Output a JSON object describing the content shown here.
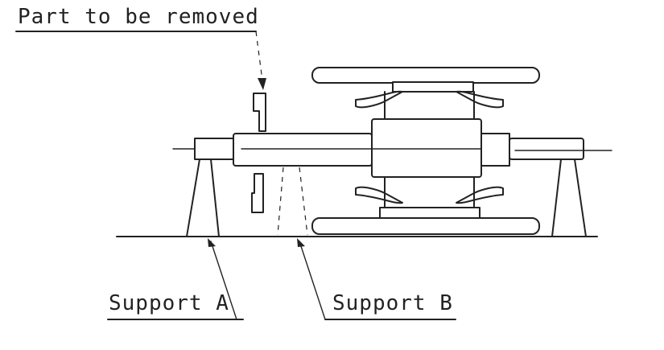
{
  "labels": {
    "part_to_be_removed": "Part to be removed",
    "support_a": "Support A",
    "support_b": "Support B"
  }
}
